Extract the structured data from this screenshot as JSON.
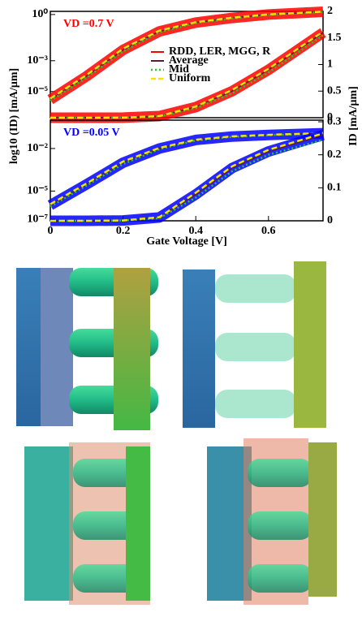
{
  "chart_data": [
    {
      "type": "line",
      "annotation": "VD =0.7 V",
      "annotation_color": "#ff0000",
      "ylabel": "log10 (ID) [mA/μm]",
      "y2label": "ID [mA/μm]",
      "log_scale": true,
      "x": [
        0,
        0.1,
        0.2,
        0.3,
        0.4,
        0.5,
        0.6,
        0.75
      ],
      "xlim": [
        0,
        0.75
      ],
      "ylim": [
        2e-07,
        1.6
      ],
      "yticks": [
        {
          "value": 1,
          "label": "10⁰"
        },
        {
          "value": 0.001,
          "label": "10⁻³"
        },
        {
          "value": 1e-05,
          "label": "10⁻⁵"
        }
      ],
      "y2lim": [
        0,
        2
      ],
      "y2ticks": [
        0,
        0.5,
        1,
        1.5,
        2
      ],
      "series": [
        {
          "name": "RDD, LER, MGG, R",
          "color": "#ff0000",
          "style": "band",
          "values": [
            3e-06,
            0.0001,
            0.005,
            0.08,
            0.3,
            0.6,
            1,
            1.5
          ]
        },
        {
          "name": "Average",
          "color": "#5a1a3a",
          "style": "solid",
          "values": [
            3e-06,
            0.0001,
            0.005,
            0.08,
            0.3,
            0.6,
            1,
            1.5
          ]
        },
        {
          "name": "Mid",
          "color": "#22cc22",
          "style": "dotted",
          "values": [
            2.5e-06,
            8e-05,
            0.004,
            0.07,
            0.28,
            0.55,
            0.95,
            1.45
          ]
        },
        {
          "name": "Uniform",
          "color": "#f2e600",
          "style": "dashed",
          "values": [
            3.5e-06,
            0.00012,
            0.006,
            0.09,
            0.32,
            0.62,
            1.02,
            1.52
          ]
        },
        {
          "name": "RDD, LER, MGG, R",
          "color": "#ff0000",
          "style": "band",
          "axis": "y2",
          "values": [
            0,
            0,
            0.002,
            0.03,
            0.2,
            0.5,
            0.9,
            1.6
          ]
        },
        {
          "name": "Average",
          "color": "#5a1a3a",
          "style": "solid",
          "axis": "y2",
          "values": [
            0,
            0,
            0.002,
            0.03,
            0.2,
            0.5,
            0.9,
            1.6
          ]
        },
        {
          "name": "Mid",
          "color": "#22cc22",
          "style": "dotted",
          "axis": "y2",
          "values": [
            0,
            0,
            0.001,
            0.025,
            0.18,
            0.46,
            0.85,
            1.55
          ]
        },
        {
          "name": "Uniform",
          "color": "#f2e600",
          "style": "dashed",
          "axis": "y2",
          "values": [
            0,
            0,
            0.002,
            0.03,
            0.21,
            0.52,
            0.92,
            1.62
          ]
        }
      ]
    },
    {
      "type": "line",
      "annotation": "VD =0.05 V",
      "annotation_color": "#0000ff",
      "xlabel": "Gate Voltage [V]",
      "log_scale": true,
      "x": [
        0,
        0.1,
        0.2,
        0.3,
        0.4,
        0.5,
        0.6,
        0.75
      ],
      "xlim": [
        0,
        0.75
      ],
      "xticks": [
        0,
        0.2,
        0.4,
        0.6
      ],
      "ylim": [
        8e-08,
        1
      ],
      "yticks": [
        {
          "value": 0.01,
          "label": "10⁻²"
        },
        {
          "value": 1e-05,
          "label": "10⁻⁵"
        },
        {
          "value": 1e-07,
          "label": "10⁻⁷"
        }
      ],
      "y2lim": [
        0,
        0.305
      ],
      "y2ticks": [
        0,
        0.1,
        0.2,
        0.3
      ],
      "series": [
        {
          "name": "RDD, LER, MGG, R",
          "color": "#0000ff",
          "style": "band",
          "values": [
            1e-06,
            3e-05,
            0.001,
            0.01,
            0.04,
            0.07,
            0.09,
            0.12
          ]
        },
        {
          "name": "Average",
          "color": "#5a1a3a",
          "style": "solid",
          "values": [
            1e-06,
            3e-05,
            0.001,
            0.01,
            0.04,
            0.07,
            0.09,
            0.12
          ]
        },
        {
          "name": "Mid",
          "color": "#22cc22",
          "style": "dotted",
          "values": [
            8e-07,
            2.5e-05,
            0.0008,
            0.009,
            0.037,
            0.066,
            0.086,
            0.115
          ]
        },
        {
          "name": "Uniform",
          "color": "#f2e600",
          "style": "dashed",
          "values": [
            1.2e-06,
            3.5e-05,
            0.0012,
            0.011,
            0.042,
            0.072,
            0.092,
            0.123
          ]
        },
        {
          "name": "RDD, LER, MGG, R",
          "color": "#0000ff",
          "style": "band",
          "axis": "y2",
          "values": [
            0,
            0,
            0.001,
            0.01,
            0.08,
            0.16,
            0.21,
            0.26
          ]
        },
        {
          "name": "Average",
          "color": "#5a1a3a",
          "style": "solid",
          "axis": "y2",
          "values": [
            0,
            0,
            0.001,
            0.01,
            0.08,
            0.16,
            0.21,
            0.26
          ]
        },
        {
          "name": "Mid",
          "color": "#22cc22",
          "style": "dotted",
          "axis": "y2",
          "values": [
            0,
            0,
            0.001,
            0.008,
            0.07,
            0.15,
            0.2,
            0.245
          ]
        },
        {
          "name": "Uniform",
          "color": "#f2e600",
          "style": "dashed",
          "axis": "y2",
          "values": [
            0,
            0,
            0.001,
            0.011,
            0.085,
            0.165,
            0.215,
            0.265
          ]
        }
      ]
    }
  ]
}
